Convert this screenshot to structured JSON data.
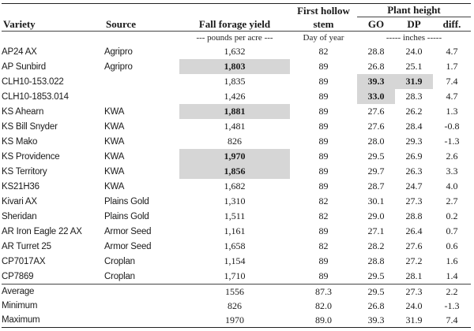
{
  "header": {
    "variety": "Variety",
    "source": "Source",
    "yield": "Fall forage yield",
    "hollow_line1": "First hollow",
    "hollow_line2": "stem",
    "plant_height": "Plant height",
    "go": "GO",
    "dp": "DP",
    "diff": "diff."
  },
  "units": {
    "yield": "--- pounds per acre ---",
    "hollow": "Day of year",
    "height": "----- inches -----"
  },
  "rows": [
    {
      "variety": "AP24 AX",
      "source": "Agripro",
      "yield": "1,632",
      "hollow": "82",
      "go": "28.8",
      "dp": "24.0",
      "diff": "4.7"
    },
    {
      "variety": "AP Sunbird",
      "source": "Agripro",
      "yield": "1,803",
      "hollow": "89",
      "go": "26.8",
      "dp": "25.1",
      "diff": "1.7"
    },
    {
      "variety": "CLH10-153.022",
      "source": "",
      "yield": "1,835",
      "hollow": "89",
      "go": "39.3",
      "dp": "31.9",
      "diff": "7.4"
    },
    {
      "variety": "CLH10-1853.014",
      "source": "",
      "yield": "1,426",
      "hollow": "89",
      "go": "33.0",
      "dp": "28.3",
      "diff": "4.7"
    },
    {
      "variety": "KS Ahearn",
      "source": "KWA",
      "yield": "1,881",
      "hollow": "89",
      "go": "27.6",
      "dp": "26.2",
      "diff": "1.3"
    },
    {
      "variety": "KS Bill Snyder",
      "source": "KWA",
      "yield": "1,481",
      "hollow": "89",
      "go": "27.6",
      "dp": "28.4",
      "diff": "-0.8"
    },
    {
      "variety": "KS Mako",
      "source": "KWA",
      "yield": "826",
      "hollow": "89",
      "go": "28.0",
      "dp": "29.3",
      "diff": "-1.3"
    },
    {
      "variety": "KS Providence",
      "source": "KWA",
      "yield": "1,970",
      "hollow": "89",
      "go": "29.5",
      "dp": "26.9",
      "diff": "2.6"
    },
    {
      "variety": "KS Territory",
      "source": "KWA",
      "yield": "1,856",
      "hollow": "89",
      "go": "29.7",
      "dp": "26.3",
      "diff": "3.3"
    },
    {
      "variety": "KS21H36",
      "source": "KWA",
      "yield": "1,682",
      "hollow": "89",
      "go": "28.7",
      "dp": "24.7",
      "diff": "4.0"
    },
    {
      "variety": "Kivari AX",
      "source": "Plains Gold",
      "yield": "1,310",
      "hollow": "82",
      "go": "30.1",
      "dp": "27.3",
      "diff": "2.7"
    },
    {
      "variety": "Sheridan",
      "source": "Plains Gold",
      "yield": "1,511",
      "hollow": "82",
      "go": "29.0",
      "dp": "28.8",
      "diff": "0.2"
    },
    {
      "variety": "AR Iron Eagle 22 AX",
      "source": "Armor Seed",
      "yield": "1,161",
      "hollow": "89",
      "go": "27.1",
      "dp": "26.4",
      "diff": "0.7"
    },
    {
      "variety": "AR Turret 25",
      "source": "Armor Seed",
      "yield": "1,658",
      "hollow": "82",
      "go": "28.2",
      "dp": "27.6",
      "diff": "0.6"
    },
    {
      "variety": "CP7017AX",
      "source": "Croplan",
      "yield": "1,154",
      "hollow": "89",
      "go": "28.8",
      "dp": "27.2",
      "diff": "1.6"
    },
    {
      "variety": "CP7869",
      "source": "Croplan",
      "yield": "1,710",
      "hollow": "89",
      "go": "29.5",
      "dp": "28.1",
      "diff": "1.4"
    }
  ],
  "summary": [
    {
      "label": "Average",
      "yield": "1556",
      "hollow": "87.3",
      "go": "29.5",
      "dp": "27.3",
      "diff": "2.2"
    },
    {
      "label": "Minimum",
      "yield": "826",
      "hollow": "82.0",
      "go": "26.8",
      "dp": "24.0",
      "diff": "-1.3"
    },
    {
      "label": "Maximum",
      "yield": "1970",
      "hollow": "89.0",
      "go": "39.3",
      "dp": "31.9",
      "diff": "7.4"
    }
  ],
  "highlight_color": "#d6d6d6"
}
